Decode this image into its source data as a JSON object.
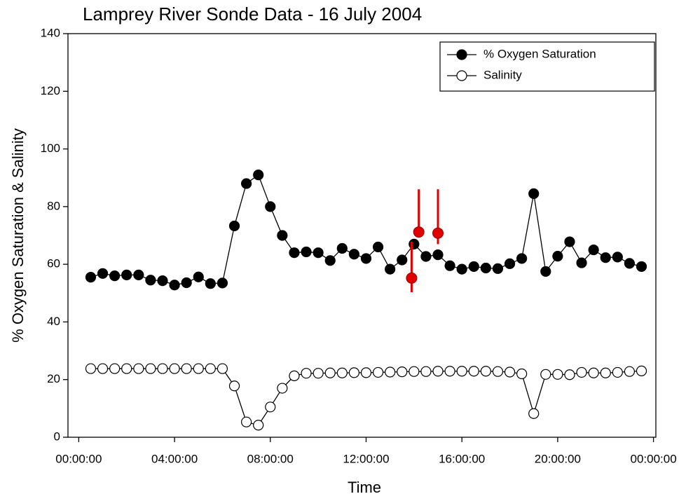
{
  "chart_data": {
    "type": "line",
    "title": "Lamprey River Sonde Data - 16 July 2004",
    "xlabel": "Time",
    "ylabel": "% Oxygen Saturation & Salinity",
    "x": [
      0.5,
      1,
      1.5,
      2,
      2.5,
      3,
      3.5,
      4,
      4.5,
      5,
      5.5,
      6,
      6.5,
      7,
      7.5,
      8,
      8.5,
      9,
      9.5,
      10,
      10.5,
      11,
      11.5,
      12,
      12.5,
      13,
      13.5,
      14,
      14.5,
      15,
      15.5,
      16,
      16.5,
      17,
      17.5,
      18,
      18.5,
      19,
      19.5,
      20,
      20.5,
      21,
      21.5,
      22,
      22.5,
      23,
      23.5
    ],
    "series": [
      {
        "name": "% Oxygen Saturation",
        "color": "#000000",
        "marker_fill": "#000000",
        "values": [
          55.5,
          56.8,
          56,
          56.3,
          56.3,
          54.5,
          54.3,
          52.8,
          53.6,
          55.6,
          53.3,
          53.5,
          73.3,
          88,
          91,
          80,
          70,
          64,
          64.3,
          64,
          61.3,
          65.5,
          63.5,
          62,
          66,
          58.3,
          61.5,
          67,
          62.7,
          63.3,
          59.5,
          58.3,
          59.2,
          58.7,
          58.5,
          60.2,
          62,
          84.5,
          57.5,
          62.8,
          67.8,
          60.5,
          65,
          62.3,
          62.5,
          60.3,
          59.2
        ]
      },
      {
        "name": "Salinity",
        "color": "#000000",
        "marker_fill": "#ffffff",
        "values": [
          23.8,
          23.8,
          23.8,
          23.8,
          23.8,
          23.8,
          23.8,
          23.8,
          23.8,
          23.8,
          23.8,
          23.8,
          17.8,
          5.3,
          4.2,
          10.5,
          17,
          21.3,
          22.2,
          22.2,
          22.3,
          22.3,
          22.4,
          22.4,
          22.5,
          22.6,
          22.7,
          22.8,
          22.8,
          22.9,
          22.9,
          22.9,
          22.9,
          22.9,
          22.8,
          22.6,
          22,
          8.2,
          21.8,
          21.8,
          21.7,
          22.5,
          22.3,
          22.3,
          22.5,
          22.8,
          23
        ]
      }
    ],
    "extra_points": {
      "color": "#e00000",
      "x": [
        13.9,
        14.2,
        15.0
      ],
      "values": [
        55.2,
        71.2,
        70.8
      ],
      "lower": [
        50.3,
        71.2,
        67
      ],
      "upper": [
        67.8,
        86,
        86
      ]
    },
    "xlim": [
      -0.45,
      24.1
    ],
    "xticks": [
      {
        "value": 0,
        "label": "00:00:00"
      },
      {
        "value": 4,
        "label": "04:00:00"
      },
      {
        "value": 8,
        "label": "08:00:00"
      },
      {
        "value": 12,
        "label": "12:00:00"
      },
      {
        "value": 16,
        "label": "16:00:00"
      },
      {
        "value": 20,
        "label": "20:00:00"
      },
      {
        "value": 24,
        "label": "00:00:00"
      }
    ],
    "ylim": [
      0,
      140
    ],
    "yticks": [
      0,
      20,
      40,
      60,
      80,
      100,
      120,
      140
    ],
    "legend": "upper right",
    "grid": false
  }
}
